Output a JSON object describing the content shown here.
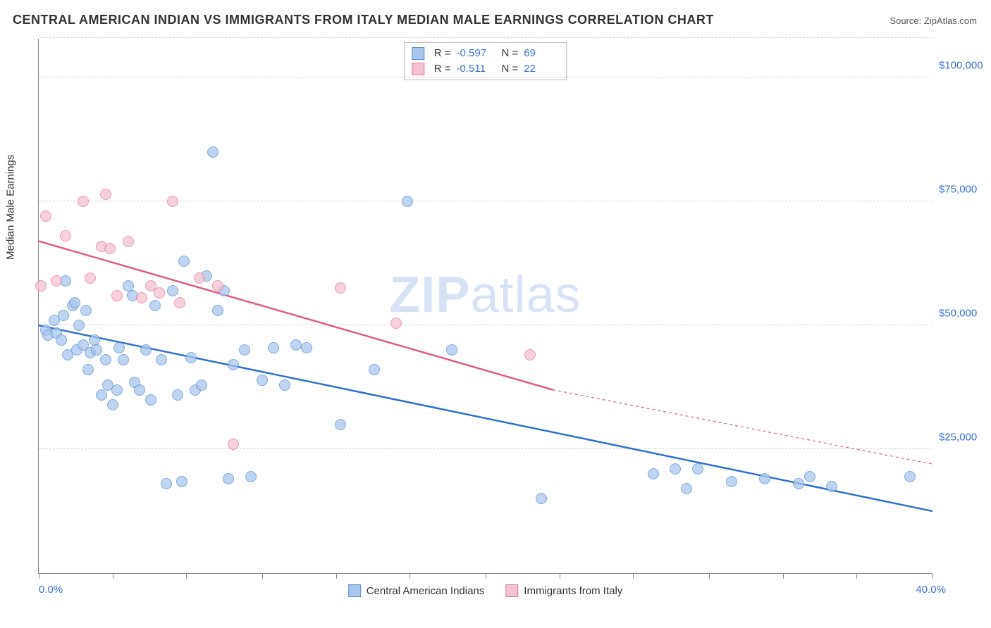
{
  "title": "CENTRAL AMERICAN INDIAN VS IMMIGRANTS FROM ITALY MEDIAN MALE EARNINGS CORRELATION CHART",
  "source_label": "Source:",
  "source_value": "ZipAtlas.com",
  "watermark": {
    "bold": "ZIP",
    "thin": "atlas"
  },
  "y_axis_title": "Median Male Earnings",
  "chart": {
    "type": "scatter",
    "xlim": [
      0,
      40
    ],
    "ylim": [
      0,
      108000
    ],
    "x_tick_positions": [
      0,
      3.3,
      6.6,
      10,
      13.3,
      16.6,
      20,
      23.3,
      26.6,
      30,
      33.3,
      36.6,
      40
    ],
    "x_range_labels": {
      "min": "0.0%",
      "max": "40.0%"
    },
    "y_ticks": [
      {
        "value": 25000,
        "label": "$25,000"
      },
      {
        "value": 50000,
        "label": "$50,000"
      },
      {
        "value": 75000,
        "label": "$75,000"
      },
      {
        "value": 100000,
        "label": "$100,000"
      }
    ],
    "y_grid": [
      25000,
      50000,
      75000,
      100000,
      108000
    ],
    "background_color": "#ffffff",
    "grid_color": "#d0d0d0",
    "colors": {
      "blue_fill": "#a9c6ec",
      "blue_stroke": "#5a8fd6",
      "blue_line": "#2f6fd0",
      "pink_fill": "#f3c1cf",
      "pink_stroke": "#e77a9a",
      "pink_line": "#e35b82",
      "axis_value": "#3b6fd6"
    },
    "legend_top": [
      {
        "series": "blue",
        "r_label": "R =",
        "r": "-0.597",
        "n_label": "N =",
        "n": "69"
      },
      {
        "series": "pink",
        "r_label": "R =",
        "r": "-0.511",
        "n_label": "N =",
        "n": "22"
      }
    ],
    "legend_bottom": [
      {
        "series": "blue",
        "label": "Central American Indians"
      },
      {
        "series": "pink",
        "label": "Immigrants from Italy"
      }
    ],
    "dot_radius": 8,
    "dot_opacity": 0.75,
    "trend_lines": [
      {
        "series": "blue",
        "x1": 0,
        "y1": 50000,
        "x2": 40,
        "y2": 12500,
        "width": 2.5,
        "dash": "none"
      },
      {
        "series": "pink",
        "x1": 0,
        "y1": 67000,
        "x2": 23,
        "y2": 37000,
        "width": 2.5,
        "dash": "none"
      },
      {
        "series": "pink",
        "x1": 23,
        "y1": 37000,
        "x2": 40,
        "y2": 22000,
        "width": 1.2,
        "dash": "4,4"
      }
    ],
    "series": [
      {
        "name": "blue",
        "points": [
          [
            0.3,
            49000
          ],
          [
            0.4,
            48000
          ],
          [
            0.7,
            51000
          ],
          [
            0.8,
            48500
          ],
          [
            1.0,
            47000
          ],
          [
            1.1,
            52000
          ],
          [
            1.2,
            59000
          ],
          [
            1.3,
            44000
          ],
          [
            1.5,
            54000
          ],
          [
            1.6,
            54500
          ],
          [
            1.7,
            45000
          ],
          [
            1.8,
            50000
          ],
          [
            2.0,
            46000
          ],
          [
            2.1,
            53000
          ],
          [
            2.2,
            41000
          ],
          [
            2.3,
            44500
          ],
          [
            2.5,
            47000
          ],
          [
            2.6,
            45000
          ],
          [
            2.8,
            36000
          ],
          [
            3.0,
            43000
          ],
          [
            3.1,
            38000
          ],
          [
            3.3,
            34000
          ],
          [
            3.5,
            37000
          ],
          [
            3.6,
            45500
          ],
          [
            3.8,
            43000
          ],
          [
            4.0,
            58000
          ],
          [
            4.2,
            56000
          ],
          [
            4.3,
            38500
          ],
          [
            4.5,
            37000
          ],
          [
            4.8,
            45000
          ],
          [
            5.0,
            35000
          ],
          [
            5.2,
            54000
          ],
          [
            5.5,
            43000
          ],
          [
            5.7,
            18000
          ],
          [
            6.0,
            57000
          ],
          [
            6.2,
            36000
          ],
          [
            6.4,
            18500
          ],
          [
            6.5,
            63000
          ],
          [
            6.8,
            43500
          ],
          [
            7.0,
            37000
          ],
          [
            7.3,
            38000
          ],
          [
            7.5,
            60000
          ],
          [
            7.8,
            85000
          ],
          [
            8.0,
            53000
          ],
          [
            8.3,
            57000
          ],
          [
            8.5,
            19000
          ],
          [
            8.7,
            42000
          ],
          [
            9.2,
            45000
          ],
          [
            9.5,
            19500
          ],
          [
            10.0,
            39000
          ],
          [
            10.5,
            45500
          ],
          [
            11.0,
            38000
          ],
          [
            11.5,
            46000
          ],
          [
            12.0,
            45500
          ],
          [
            13.5,
            30000
          ],
          [
            15.0,
            41000
          ],
          [
            16.5,
            75000
          ],
          [
            18.5,
            45000
          ],
          [
            22.5,
            15000
          ],
          [
            27.5,
            20000
          ],
          [
            28.5,
            21000
          ],
          [
            29.0,
            17000
          ],
          [
            29.5,
            21000
          ],
          [
            31.0,
            18500
          ],
          [
            32.5,
            19000
          ],
          [
            34.0,
            18000
          ],
          [
            34.5,
            19500
          ],
          [
            35.5,
            17500
          ],
          [
            39.0,
            19500
          ]
        ]
      },
      {
        "name": "pink",
        "points": [
          [
            0.1,
            58000
          ],
          [
            0.3,
            72000
          ],
          [
            0.8,
            59000
          ],
          [
            1.2,
            68000
          ],
          [
            2.0,
            75000
          ],
          [
            2.3,
            59500
          ],
          [
            2.8,
            66000
          ],
          [
            3.0,
            76500
          ],
          [
            3.2,
            65500
          ],
          [
            3.5,
            56000
          ],
          [
            4.0,
            67000
          ],
          [
            4.6,
            55500
          ],
          [
            5.0,
            58000
          ],
          [
            5.4,
            56500
          ],
          [
            6.0,
            75000
          ],
          [
            6.3,
            54500
          ],
          [
            7.2,
            59500
          ],
          [
            8.0,
            58000
          ],
          [
            8.7,
            26000
          ],
          [
            13.5,
            57500
          ],
          [
            16.0,
            50500
          ],
          [
            22.0,
            44000
          ]
        ]
      }
    ]
  }
}
